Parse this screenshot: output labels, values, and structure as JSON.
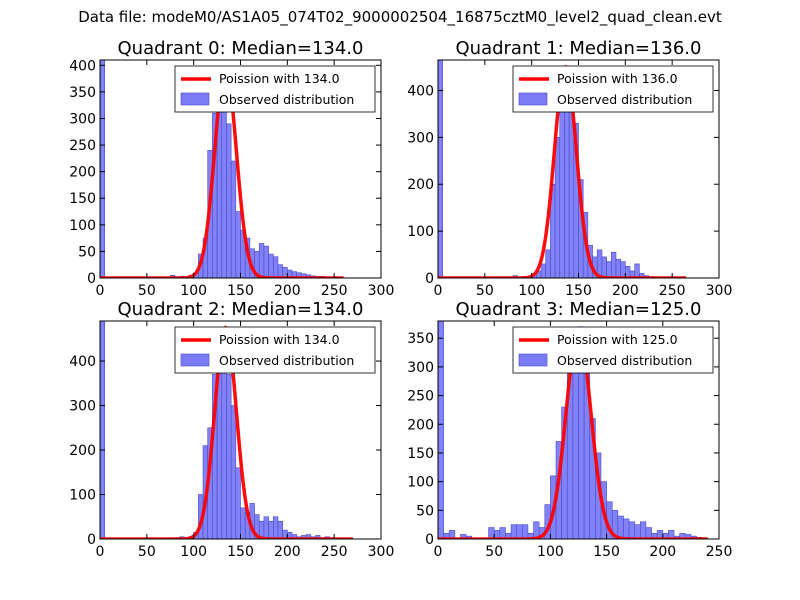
{
  "figure_title": "Data file: modeM0/AS1A05_074T02_9000002504_16875cztM0_level2_quad_clean.evt",
  "colors": {
    "bars": "#7b7bf7",
    "bar_edge": "#4a4acc",
    "poisson": "#ff0000",
    "axes": "#000000"
  },
  "chart_data": [
    {
      "type": "bar",
      "title": "Quadrant 0: Median=134.0",
      "legend": [
        "Poission with 134.0",
        "Observed distribution"
      ],
      "legend_position": "top-right",
      "xlim": [
        0,
        300
      ],
      "ylim": [
        0,
        410
      ],
      "xticks": [
        0,
        50,
        100,
        150,
        200,
        250,
        300
      ],
      "yticks": [
        0,
        50,
        100,
        150,
        200,
        250,
        300,
        350,
        400
      ],
      "bin_width": 5,
      "bins": [
        [
          0,
          410
        ],
        [
          75,
          5
        ],
        [
          85,
          3
        ],
        [
          95,
          5
        ],
        [
          100,
          10
        ],
        [
          105,
          45
        ],
        [
          110,
          75
        ],
        [
          115,
          240
        ],
        [
          120,
          310
        ],
        [
          125,
          390
        ],
        [
          130,
          355
        ],
        [
          135,
          290
        ],
        [
          140,
          220
        ],
        [
          145,
          125
        ],
        [
          150,
          90
        ],
        [
          155,
          75
        ],
        [
          160,
          55
        ],
        [
          165,
          50
        ],
        [
          170,
          65
        ],
        [
          175,
          60
        ],
        [
          180,
          45
        ],
        [
          185,
          40
        ],
        [
          190,
          25
        ],
        [
          195,
          20
        ],
        [
          200,
          15
        ],
        [
          205,
          12
        ],
        [
          210,
          10
        ],
        [
          215,
          8
        ],
        [
          220,
          6
        ],
        [
          225,
          4
        ],
        [
          230,
          3
        ],
        [
          235,
          3
        ],
        [
          240,
          2
        ],
        [
          250,
          1
        ],
        [
          255,
          1
        ]
      ],
      "poisson": {
        "mean": 134.0,
        "peak": 395,
        "xmax": 260
      }
    },
    {
      "type": "bar",
      "title": "Quadrant 1: Median=136.0",
      "legend": [
        "Poission with 136.0",
        "Observed distribution"
      ],
      "legend_position": "top-right",
      "xlim": [
        0,
        300
      ],
      "ylim": [
        0,
        465
      ],
      "xticks": [
        0,
        50,
        100,
        150,
        200,
        250,
        300
      ],
      "yticks": [
        0,
        100,
        200,
        300,
        400
      ],
      "bin_width": 5,
      "bins": [
        [
          0,
          465
        ],
        [
          80,
          5
        ],
        [
          90,
          3
        ],
        [
          100,
          8
        ],
        [
          105,
          15
        ],
        [
          110,
          30
        ],
        [
          115,
          60
        ],
        [
          120,
          200
        ],
        [
          125,
          300
        ],
        [
          130,
          380
        ],
        [
          135,
          450
        ],
        [
          140,
          400
        ],
        [
          145,
          330
        ],
        [
          150,
          210
        ],
        [
          155,
          140
        ],
        [
          160,
          70
        ],
        [
          165,
          45
        ],
        [
          170,
          60
        ],
        [
          175,
          45
        ],
        [
          180,
          35
        ],
        [
          185,
          55
        ],
        [
          190,
          40
        ],
        [
          195,
          35
        ],
        [
          200,
          25
        ],
        [
          205,
          15
        ],
        [
          210,
          30
        ],
        [
          215,
          10
        ],
        [
          220,
          5
        ],
        [
          225,
          3
        ],
        [
          230,
          2
        ],
        [
          240,
          1
        ],
        [
          250,
          1
        ],
        [
          255,
          1
        ]
      ],
      "poisson": {
        "mean": 136.0,
        "peak": 450,
        "xmax": 265
      }
    },
    {
      "type": "bar",
      "title": "Quadrant 2: Median=134.0",
      "legend": [
        "Poission with 134.0",
        "Observed distribution"
      ],
      "legend_position": "top-right",
      "xlim": [
        0,
        300
      ],
      "ylim": [
        0,
        490
      ],
      "xticks": [
        0,
        50,
        100,
        150,
        200,
        250,
        300
      ],
      "yticks": [
        0,
        100,
        200,
        300,
        400
      ],
      "bin_width": 5,
      "bins": [
        [
          0,
          490
        ],
        [
          80,
          3
        ],
        [
          85,
          5
        ],
        [
          95,
          5
        ],
        [
          100,
          15
        ],
        [
          105,
          100
        ],
        [
          110,
          210
        ],
        [
          115,
          250
        ],
        [
          120,
          370
        ],
        [
          125,
          470
        ],
        [
          130,
          400
        ],
        [
          135,
          370
        ],
        [
          140,
          300
        ],
        [
          145,
          160
        ],
        [
          150,
          70
        ],
        [
          155,
          60
        ],
        [
          160,
          80
        ],
        [
          165,
          55
        ],
        [
          170,
          40
        ],
        [
          175,
          50
        ],
        [
          180,
          40
        ],
        [
          185,
          50
        ],
        [
          190,
          40
        ],
        [
          195,
          20
        ],
        [
          200,
          15
        ],
        [
          205,
          10
        ],
        [
          210,
          5
        ],
        [
          215,
          8
        ],
        [
          220,
          10
        ],
        [
          225,
          5
        ],
        [
          230,
          8
        ],
        [
          235,
          3
        ],
        [
          240,
          5
        ],
        [
          245,
          3
        ],
        [
          250,
          2
        ],
        [
          255,
          1
        ],
        [
          260,
          1
        ]
      ],
      "poisson": {
        "mean": 134.0,
        "peak": 475,
        "xmax": 270
      }
    },
    {
      "type": "bar",
      "title": "Quadrant 3: Median=125.0",
      "legend": [
        "Poission with 125.0",
        "Observed distribution"
      ],
      "legend_position": "top-right",
      "xlim": [
        0,
        250
      ],
      "ylim": [
        0,
        380
      ],
      "xticks": [
        0,
        50,
        100,
        150,
        200,
        250
      ],
      "yticks": [
        0,
        50,
        100,
        150,
        200,
        250,
        300,
        350
      ],
      "bin_width": 5,
      "bins": [
        [
          0,
          380
        ],
        [
          5,
          10
        ],
        [
          10,
          15
        ],
        [
          20,
          8
        ],
        [
          25,
          5
        ],
        [
          45,
          20
        ],
        [
          50,
          15
        ],
        [
          55,
          20
        ],
        [
          60,
          10
        ],
        [
          65,
          25
        ],
        [
          70,
          25
        ],
        [
          75,
          25
        ],
        [
          80,
          10
        ],
        [
          85,
          30
        ],
        [
          90,
          20
        ],
        [
          95,
          60
        ],
        [
          100,
          110
        ],
        [
          105,
          170
        ],
        [
          110,
          230
        ],
        [
          115,
          330
        ],
        [
          120,
          360
        ],
        [
          125,
          370
        ],
        [
          130,
          300
        ],
        [
          135,
          210
        ],
        [
          140,
          150
        ],
        [
          145,
          100
        ],
        [
          150,
          65
        ],
        [
          155,
          50
        ],
        [
          160,
          40
        ],
        [
          165,
          35
        ],
        [
          170,
          30
        ],
        [
          175,
          25
        ],
        [
          180,
          30
        ],
        [
          185,
          20
        ],
        [
          190,
          10
        ],
        [
          195,
          15
        ],
        [
          200,
          10
        ],
        [
          205,
          15
        ],
        [
          210,
          5
        ],
        [
          215,
          10
        ],
        [
          220,
          8
        ],
        [
          225,
          5
        ],
        [
          230,
          3
        ]
      ],
      "poisson": {
        "mean": 125.0,
        "peak": 360,
        "xmax": 240
      }
    }
  ]
}
